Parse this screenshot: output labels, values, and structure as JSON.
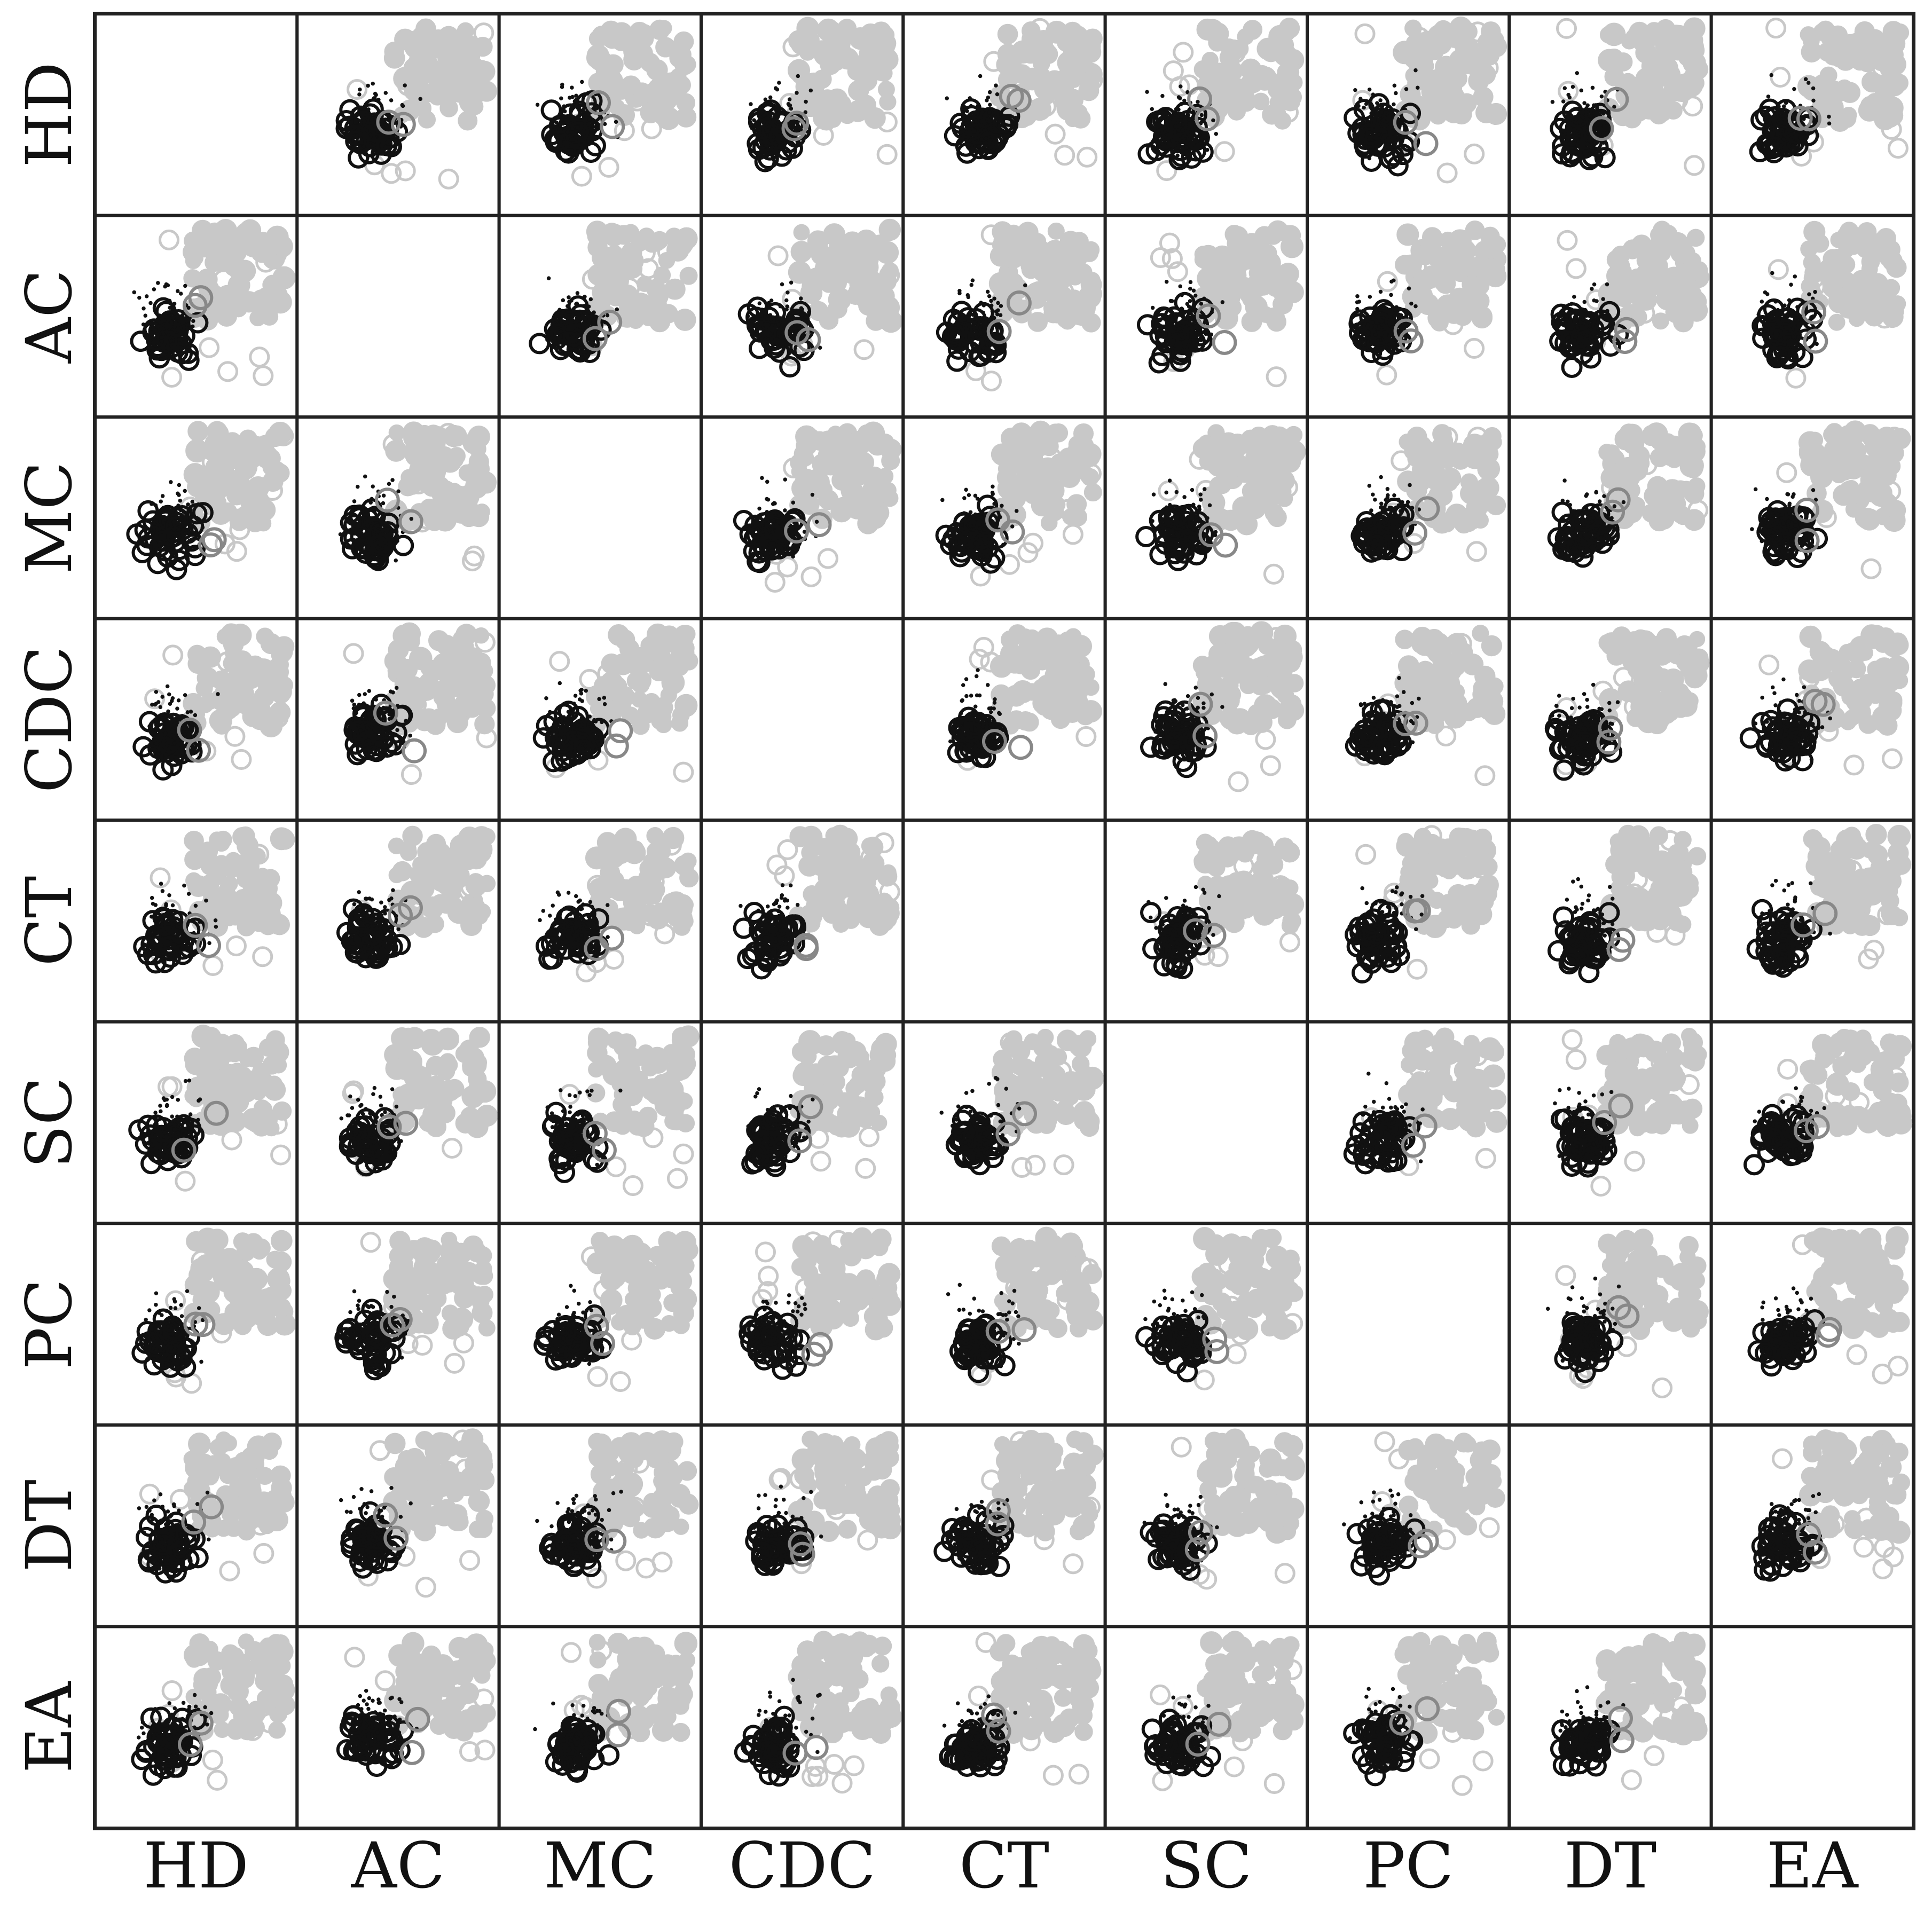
{
  "chart_data": {
    "type": "scatter",
    "variables": [
      "HD",
      "AC",
      "MC",
      "CDC",
      "CT",
      "SC",
      "PC",
      "DT",
      "EA"
    ],
    "diagonal_cells": "empty",
    "marker_style": "open circles (black and light gray) with filled light-gray and black dots",
    "grid": false,
    "colors": {
      "black": "#111111",
      "gray": "#c8c8c8",
      "frame": "#222222"
    }
  }
}
